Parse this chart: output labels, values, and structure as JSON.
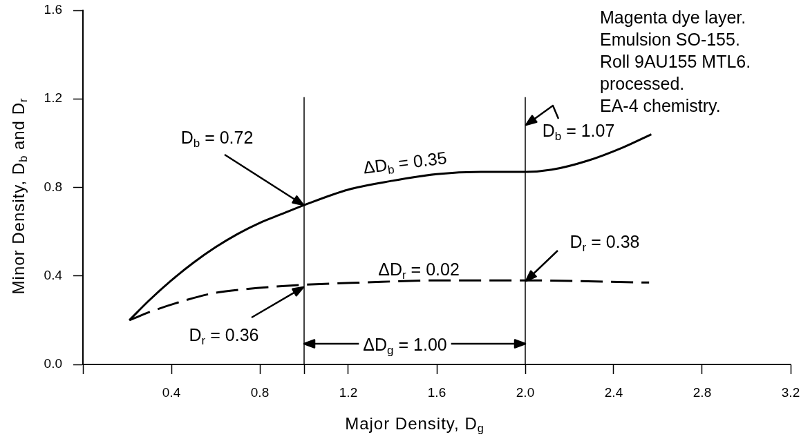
{
  "chart_data": {
    "type": "line",
    "xlabel": "Major Density, D$_{g}$",
    "ylabel": "Minor Density, D$_{b}$ and D$_{r}$",
    "xlim": [
      0,
      3.2
    ],
    "xticks": [
      {
        "value": 0,
        "label": null
      },
      0.4,
      0.8,
      {
        "value": 1,
        "label": null
      },
      1.2,
      1.6,
      {
        "value": 2,
        "label": "2.0"
      },
      2.4,
      2.8,
      3.2
    ],
    "ylim": [
      0,
      1.6
    ],
    "yticks": [
      {
        "value": 0,
        "label": "0.0"
      },
      0.4,
      0.8,
      1.2,
      1.6
    ],
    "series": [
      {
        "color": "#000000",
        "line_style": "solid",
        "x": [
          0.21,
          0.3,
          0.4,
          0.5,
          0.6,
          0.7,
          0.8,
          0.9,
          1.0,
          1.2,
          1.4,
          1.6,
          1.8,
          2.0,
          2.12,
          2.28,
          2.44,
          2.57
        ],
        "values": [
          0.2,
          0.29,
          0.38,
          0.46,
          0.53,
          0.59,
          0.64,
          0.68,
          0.72,
          0.79,
          0.83,
          0.86,
          0.87,
          0.87,
          0.88,
          0.92,
          0.98,
          1.04
        ]
      },
      {
        "color": "#000000",
        "line_style": "dashed",
        "x": [
          0.21,
          0.31,
          0.43,
          0.58,
          0.73,
          1.0,
          1.26,
          1.62,
          2.0,
          2.56
        ],
        "values": [
          0.2,
          0.24,
          0.28,
          0.32,
          0.34,
          0.36,
          0.37,
          0.38,
          0.38,
          0.37
        ]
      }
    ],
    "ref_lines": [
      {
        "axis": "x",
        "value": 1,
        "color": "#000000"
      },
      {
        "axis": "x",
        "value": 2,
        "color": "#000000"
      }
    ],
    "annotations": [
      "Magenta dye layer.\nEmulsion SO-155.\nRoll 9AU155 MTL6.\nprocessed.\nEA-4 chemistry.",
      "D$_{b}$ = 0.72",
      "ΔD$_{b}$ = 0.35",
      "D$_{b}$ = 1.07",
      "D$_{r}$ = 0.38",
      "ΔD$_{r}$ = 0.02",
      "D$_{r}$ = 0.36",
      "ΔD$_{g}$ = 1.00"
    ]
  }
}
